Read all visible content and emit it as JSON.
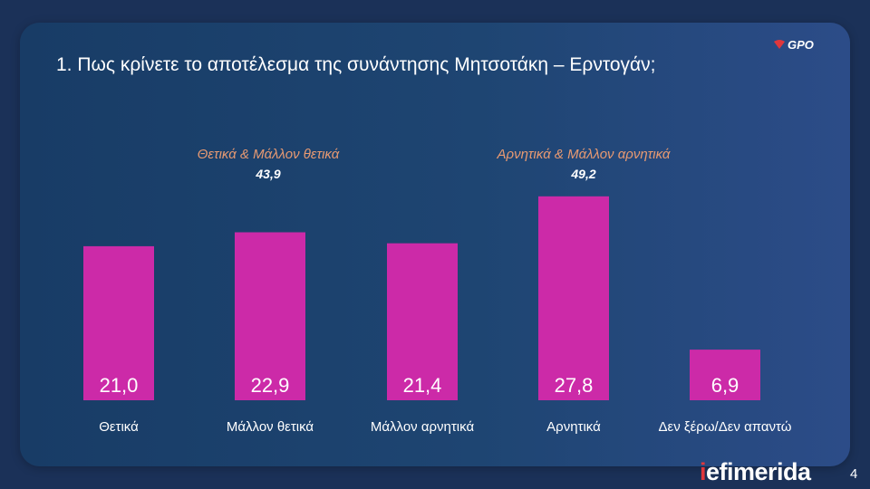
{
  "title": "1. Πως κρίνετε το αποτέλεσμα της συνάντησης Μητσοτάκη – Ερντογάν;",
  "logo": "GPO",
  "groups": [
    {
      "label": "Θετικά & Μάλλον θετικά",
      "value": "43,9"
    },
    {
      "label": "Αρνητικά & Μάλλον αρνητικά",
      "value": "49,2"
    }
  ],
  "chart_data": {
    "type": "bar",
    "categories": [
      "Θετικά",
      "Μάλλον θετικά",
      "Μάλλον αρνητικά",
      "Αρνητικά",
      "Δεν ξέρω/Δεν απαντώ"
    ],
    "values": [
      21.0,
      22.9,
      21.4,
      27.8,
      6.9
    ],
    "value_labels": [
      "21,0",
      "22,9",
      "21,4",
      "27,8",
      "6,9"
    ],
    "bar_color": "#cc2aa8",
    "title": "",
    "xlabel": "",
    "ylabel": ""
  },
  "footer": {
    "brand_i": "i",
    "brand_rest": "efimerida",
    "page_number": "4"
  },
  "colors": {
    "background": "#1b3158",
    "accent": "#e89a72",
    "bar": "#cc2aa8",
    "brand": "#e0373c"
  }
}
